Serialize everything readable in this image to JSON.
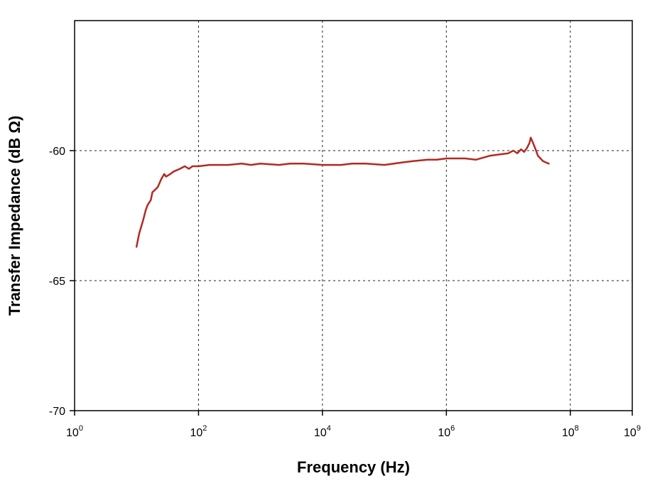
{
  "chart_data": {
    "type": "line",
    "title": "",
    "xlabel": "Frequency (Hz)",
    "ylabel": "Transfer Impedance (dB Ω)",
    "x_scale": "log",
    "xlim": [
      1,
      1000000000
    ],
    "ylim": [
      -70,
      -55
    ],
    "grid": true,
    "x_ticks": [
      {
        "value": 1,
        "base": "10",
        "exp": "0"
      },
      {
        "value": 100,
        "base": "10",
        "exp": "2"
      },
      {
        "value": 10000,
        "base": "10",
        "exp": "4"
      },
      {
        "value": 1000000,
        "base": "10",
        "exp": "6"
      },
      {
        "value": 100000000,
        "base": "10",
        "exp": "8"
      },
      {
        "value": 1000000000,
        "base": "10",
        "exp": "9"
      }
    ],
    "y_ticks": [
      {
        "value": -60,
        "label": "-60"
      },
      {
        "value": -65,
        "label": "-65"
      },
      {
        "value": -70,
        "label": "-70"
      }
    ],
    "series": [
      {
        "color": "#b22a22",
        "x": [
          10,
          11,
          12,
          13,
          14,
          15,
          17,
          18,
          20,
          22,
          25,
          28,
          30,
          35,
          40,
          50,
          60,
          70,
          80,
          100,
          150,
          200,
          300,
          500,
          700,
          1000,
          2000,
          3000,
          5000,
          10000,
          20000,
          30000,
          50000,
          100000,
          200000,
          300000,
          500000,
          700000,
          1000000,
          2000000,
          3000000,
          5000000,
          7000000,
          10000000,
          12000000,
          14000000,
          16000000,
          18000000,
          20000000,
          22000000,
          23000000,
          25000000,
          28000000,
          30000000,
          33000000,
          36000000,
          40000000,
          45000000
        ],
        "y": [
          -63.7,
          -63.2,
          -62.9,
          -62.6,
          -62.3,
          -62.1,
          -61.9,
          -61.6,
          -61.5,
          -61.4,
          -61.1,
          -60.9,
          -61.0,
          -60.9,
          -60.8,
          -60.7,
          -60.6,
          -60.7,
          -60.6,
          -60.6,
          -60.55,
          -60.55,
          -60.55,
          -60.5,
          -60.55,
          -60.5,
          -60.55,
          -60.5,
          -60.5,
          -60.55,
          -60.55,
          -60.5,
          -60.5,
          -60.55,
          -60.45,
          -60.4,
          -60.35,
          -60.35,
          -60.3,
          -60.3,
          -60.35,
          -60.2,
          -60.15,
          -60.1,
          -60.0,
          -60.1,
          -59.95,
          -60.05,
          -59.9,
          -59.7,
          -59.5,
          -59.7,
          -60.0,
          -60.2,
          -60.3,
          -60.4,
          -60.45,
          -60.5
        ]
      }
    ]
  }
}
